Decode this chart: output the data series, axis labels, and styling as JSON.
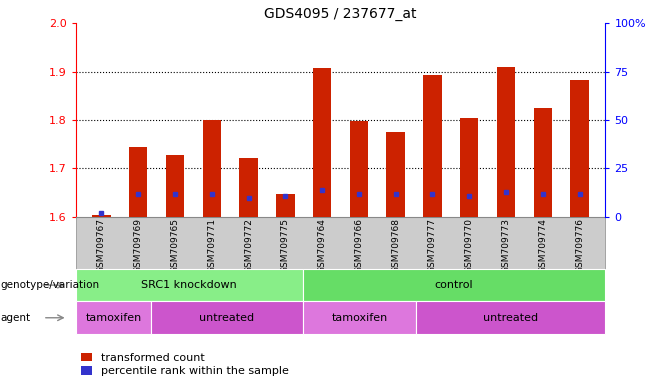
{
  "title": "GDS4095 / 237677_at",
  "samples": [
    "GSM709767",
    "GSM709769",
    "GSM709765",
    "GSM709771",
    "GSM709772",
    "GSM709775",
    "GSM709764",
    "GSM709766",
    "GSM709768",
    "GSM709777",
    "GSM709770",
    "GSM709773",
    "GSM709774",
    "GSM709776"
  ],
  "transformed_count": [
    1.604,
    1.745,
    1.728,
    1.8,
    1.722,
    1.648,
    1.908,
    1.797,
    1.775,
    1.893,
    1.805,
    1.91,
    1.824,
    1.882
  ],
  "percentile_rank": [
    2,
    12,
    12,
    12,
    10,
    11,
    14,
    12,
    12,
    12,
    11,
    13,
    12,
    12
  ],
  "ymin": 1.6,
  "ymax": 2.0,
  "bar_color": "#cc2200",
  "dot_color": "#3333cc",
  "bar_width": 0.5,
  "genotype_variation": [
    {
      "label": "SRC1 knockdown",
      "start": 0,
      "end": 6,
      "color": "#88ee88"
    },
    {
      "label": "control",
      "start": 6,
      "end": 14,
      "color": "#66dd66"
    }
  ],
  "agent": [
    {
      "label": "tamoxifen",
      "start": 0,
      "end": 2,
      "color": "#dd77dd"
    },
    {
      "label": "untreated",
      "start": 2,
      "end": 6,
      "color": "#cc55cc"
    },
    {
      "label": "tamoxifen",
      "start": 6,
      "end": 9,
      "color": "#dd77dd"
    },
    {
      "label": "untreated",
      "start": 9,
      "end": 14,
      "color": "#cc55cc"
    }
  ],
  "legend_items": [
    {
      "label": "transformed count",
      "color": "#cc2200"
    },
    {
      "label": "percentile rank within the sample",
      "color": "#3333cc"
    }
  ],
  "right_axis_ticks": [
    0,
    25,
    50,
    75,
    100
  ],
  "right_axis_labels": [
    "0",
    "25",
    "50",
    "75",
    "100%"
  ],
  "left_axis_ticks": [
    1.6,
    1.7,
    1.8,
    1.9,
    2.0
  ],
  "dotted_lines": [
    1.7,
    1.8,
    1.9
  ],
  "xtick_bg_color": "#cccccc",
  "plot_bg_color": "#ffffff"
}
